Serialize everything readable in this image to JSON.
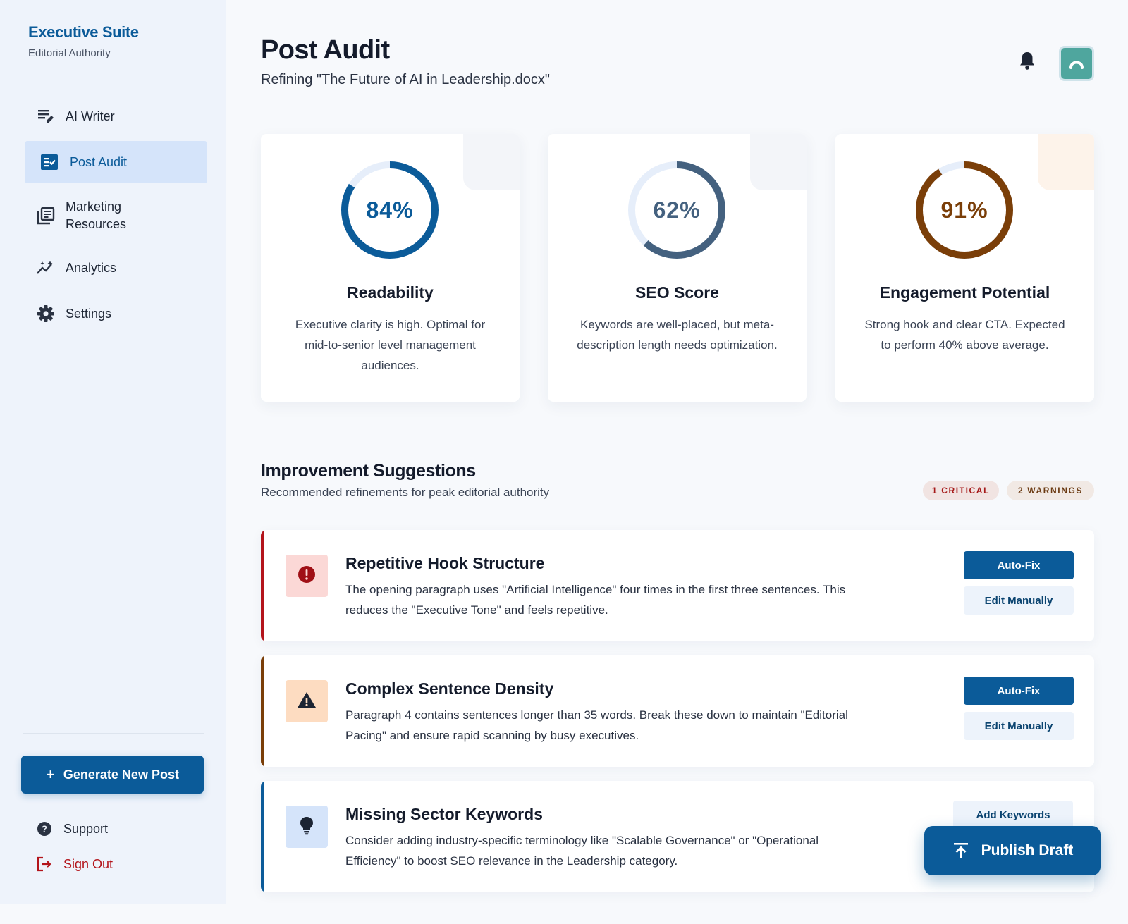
{
  "brand": {
    "title": "Executive Suite",
    "subtitle": "Editorial Authority"
  },
  "nav": [
    {
      "label": "AI Writer",
      "icon": "edit-note-icon"
    },
    {
      "label": "Post Audit",
      "icon": "fact-check-icon",
      "active": true
    },
    {
      "label": "Marketing Resources",
      "icon": "library-books-icon"
    },
    {
      "label": "Analytics",
      "icon": "analytics-icon"
    },
    {
      "label": "Settings",
      "icon": "gear-icon"
    }
  ],
  "generate_label": "Generate New Post",
  "footer": {
    "support": "Support",
    "signout": "Sign Out"
  },
  "header": {
    "title": "Post Audit",
    "subtitle": "Refining \"The Future of AI in Leadership.docx\""
  },
  "scores": [
    {
      "value": 84,
      "display": "84%",
      "title": "Readability",
      "desc": "Executive clarity is high. Optimal for mid-to-senior level management audiences.",
      "color": "#0b5b99",
      "track": "#e6eefa",
      "corner": "#f3f5f9"
    },
    {
      "value": 62,
      "display": "62%",
      "title": "SEO Score",
      "desc": "Keywords are well-placed, but meta-description length needs optimization.",
      "color": "#44617f",
      "track": "#e6eefa",
      "corner": "#f3f5f9"
    },
    {
      "value": 91,
      "display": "91%",
      "title": "Engagement Potential",
      "desc": "Strong hook and clear CTA. Expected to perform 40% above average.",
      "color": "#7a3e08",
      "track": "#e6eefa",
      "corner": "#fdf3ea"
    }
  ],
  "suggestions_section": {
    "title": "Improvement Suggestions",
    "subtitle": "Recommended refinements for peak editorial authority",
    "badge_critical": "1 CRITICAL",
    "badge_warnings": "2 WARNINGS"
  },
  "suggestions": [
    {
      "title": "Repetitive Hook Structure",
      "desc": "The opening paragraph uses \"Artificial Intelligence\" four times in the first three sentences. This reduces the \"Executive Tone\" and feels repetitive.",
      "primary": "Auto-Fix",
      "secondary": "Edit Manually",
      "severity_color": "#b3141b",
      "icon_bg": "#fbd8d6",
      "icon": "error-icon"
    },
    {
      "title": "Complex Sentence Density",
      "desc": "Paragraph 4 contains sentences longer than 35 words. Break these down to maintain \"Editorial Pacing\" and ensure rapid scanning by busy executives.",
      "primary": "Auto-Fix",
      "secondary": "Edit Manually",
      "severity_color": "#7a3e08",
      "icon_bg": "#fddcc1",
      "icon": "warning-icon"
    },
    {
      "title": "Missing Sector Keywords",
      "desc": "Consider adding industry-specific terminology like \"Scalable Governance\" or \"Operational Efficiency\" to boost SEO relevance in the Leadership category.",
      "secondary": "Add Keywords",
      "severity_color": "#0b5b99",
      "icon_bg": "#d5e4fa",
      "icon": "lightbulb-icon"
    }
  ],
  "publish_label": "Publish Draft"
}
